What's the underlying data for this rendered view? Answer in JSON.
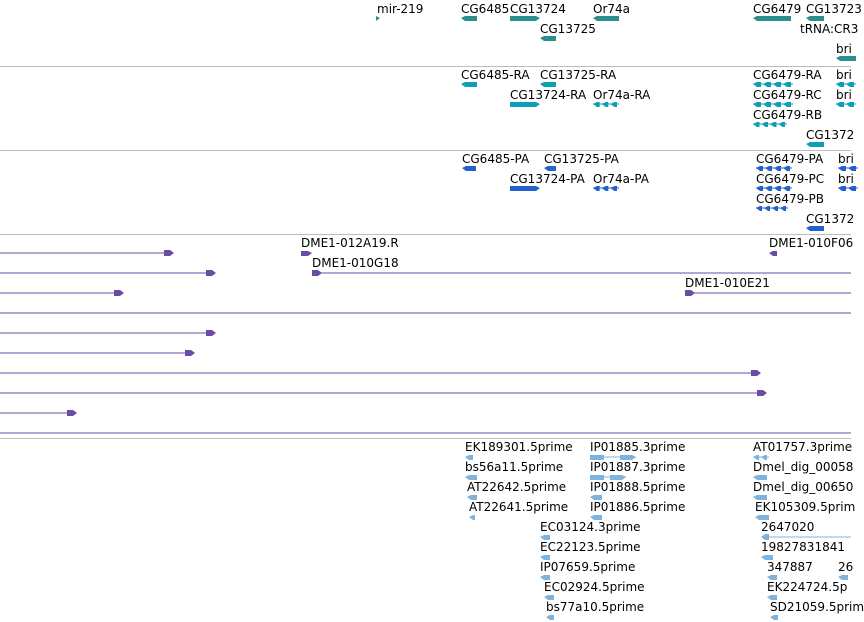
{
  "tracks": [
    {
      "name": "gene-track",
      "color": "#2a8f8f",
      "features": [
        {
          "label": "mir-219",
          "shape": "tick"
        },
        {
          "label": "CG6485",
          "shape": "left"
        },
        {
          "label": "CG13724",
          "shape": "right"
        },
        {
          "label": "CG13725",
          "shape": "left"
        },
        {
          "label": "Or74a",
          "shape": "left"
        },
        {
          "label": "CG6479",
          "shape": "left"
        },
        {
          "label": "CG13723",
          "shape": "left"
        },
        {
          "label": "tRNA:",
          "shape": "none"
        },
        {
          "label": "CR3",
          "shape": "none"
        },
        {
          "label": "bri",
          "shape": "left"
        }
      ]
    },
    {
      "name": "mrna-track",
      "color": "#0e9fb8",
      "features": [
        {
          "label": "CG6485-RA",
          "shape": "left"
        },
        {
          "label": "CG13725-RA",
          "shape": "left"
        },
        {
          "label": "CG13724-RA",
          "shape": "right"
        },
        {
          "label": "Or74a-RA",
          "shape": "exons-left"
        },
        {
          "label": "CG6479-RA",
          "shape": "exons-left"
        },
        {
          "label": "bri",
          "shape": "exons-left"
        },
        {
          "label": "CG6479-RC",
          "shape": "exons-left"
        },
        {
          "label": "bri",
          "shape": "exons-left"
        },
        {
          "label": "CG6479-RB",
          "shape": "exons-left"
        },
        {
          "label": "CG1372",
          "shape": "left"
        }
      ]
    },
    {
      "name": "protein-track",
      "color": "#2461cc",
      "features": [
        {
          "label": "CG6485-PA",
          "shape": "left"
        },
        {
          "label": "CG13725-PA",
          "shape": "left"
        },
        {
          "label": "CG13724-PA",
          "shape": "right"
        },
        {
          "label": "Or74a-PA",
          "shape": "exons-left"
        },
        {
          "label": "CG6479-PA",
          "shape": "exons-left"
        },
        {
          "label": "bri",
          "shape": "exons-left"
        },
        {
          "label": "CG6479-PC",
          "shape": "exons-left"
        },
        {
          "label": "bri",
          "shape": "exons-left"
        },
        {
          "label": "CG6479-PB",
          "shape": "exons-left"
        },
        {
          "label": "CG1372",
          "shape": "left"
        }
      ]
    },
    {
      "name": "clone-track",
      "color": "#6a4ca8",
      "features": [
        {
          "label": "",
          "shape": "line-right"
        },
        {
          "label": "DME1-012A19.R",
          "shape": "right"
        },
        {
          "label": "DME1-010F06",
          "shape": "left"
        },
        {
          "label": "",
          "shape": "line-right"
        },
        {
          "label": "DME1-010G18",
          "shape": "line-start"
        },
        {
          "label": "",
          "shape": "line-right"
        },
        {
          "label": "DME1-010E21",
          "shape": "line-start"
        },
        {
          "label": "",
          "shape": "line"
        },
        {
          "label": "",
          "shape": "line-right"
        },
        {
          "label": "",
          "shape": "line-right"
        },
        {
          "label": "",
          "shape": "line-right"
        },
        {
          "label": "",
          "shape": "line-right"
        },
        {
          "label": "",
          "shape": "line-right"
        },
        {
          "label": "",
          "shape": "line"
        }
      ]
    },
    {
      "name": "est-track",
      "color": "#7fb3dc",
      "features": [
        {
          "label": "EK189301.5prime",
          "shape": "left"
        },
        {
          "label": "IP01885.3prime",
          "shape": "exons-right"
        },
        {
          "label": "AT01757.3prime",
          "shape": "exons-left"
        },
        {
          "label": "bs56a11.5prime",
          "shape": "left"
        },
        {
          "label": "IP01887.3prime",
          "shape": "exons-right"
        },
        {
          "label": "Dmel_dig_00058",
          "shape": "left"
        },
        {
          "label": "AT22642.5prime",
          "shape": "left"
        },
        {
          "label": "IP01888.5prime",
          "shape": "left"
        },
        {
          "label": "Dmel_dig_00650",
          "shape": "left"
        },
        {
          "label": "AT22641.5prime",
          "shape": "left"
        },
        {
          "label": "IP01886.5prime",
          "shape": "left"
        },
        {
          "label": "EK105309.5prim",
          "shape": "left"
        },
        {
          "label": "EC03124.3prime",
          "shape": "left"
        },
        {
          "label": "2647020",
          "shape": "line-left"
        },
        {
          "label": "EC22123.5prime",
          "shape": "left"
        },
        {
          "label": "19827831841",
          "shape": "left"
        },
        {
          "label": "IP07659.5prime",
          "shape": "left"
        },
        {
          "label": "347887",
          "shape": "left"
        },
        {
          "label": "26",
          "shape": "left"
        },
        {
          "label": "EC02924.5prime",
          "shape": "left"
        },
        {
          "label": "EK224724.5p",
          "shape": "left"
        },
        {
          "label": "bs77a10.5prime",
          "shape": "left"
        },
        {
          "label": "SD21059.5prim",
          "shape": "left"
        }
      ]
    }
  ]
}
